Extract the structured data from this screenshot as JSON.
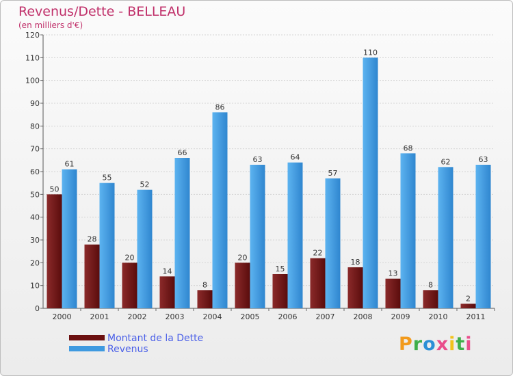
{
  "chart_data": {
    "type": "bar",
    "title": "Revenus/Dette - BELLEAU",
    "subtitle": "(en milliers d'€)",
    "categories": [
      "2000",
      "2001",
      "2002",
      "2003",
      "2004",
      "2005",
      "2006",
      "2007",
      "2008",
      "2009",
      "2010",
      "2011"
    ],
    "series": [
      {
        "name": "Montant de la Dette",
        "color": "#7a1a1a",
        "values": [
          50,
          28,
          20,
          14,
          8,
          20,
          15,
          22,
          18,
          13,
          8,
          2
        ]
      },
      {
        "name": "Revenus",
        "color": "#4aa3e6",
        "values": [
          61,
          55,
          52,
          66,
          86,
          63,
          64,
          57,
          110,
          68,
          62,
          63
        ]
      }
    ],
    "ylim": [
      0,
      120
    ],
    "yticks": [
      0,
      10,
      20,
      30,
      40,
      50,
      60,
      70,
      80,
      90,
      100,
      110,
      120
    ],
    "grid": true,
    "legend": "bottom-left"
  },
  "logo": {
    "letters": [
      "P",
      "r",
      "o",
      "x",
      "i",
      "t",
      "i"
    ],
    "colors": [
      "#f29a1c",
      "#3fae49",
      "#2b8fd6",
      "#e94d8b",
      "#f2c21c",
      "#3fae49",
      "#e94d8b"
    ]
  }
}
